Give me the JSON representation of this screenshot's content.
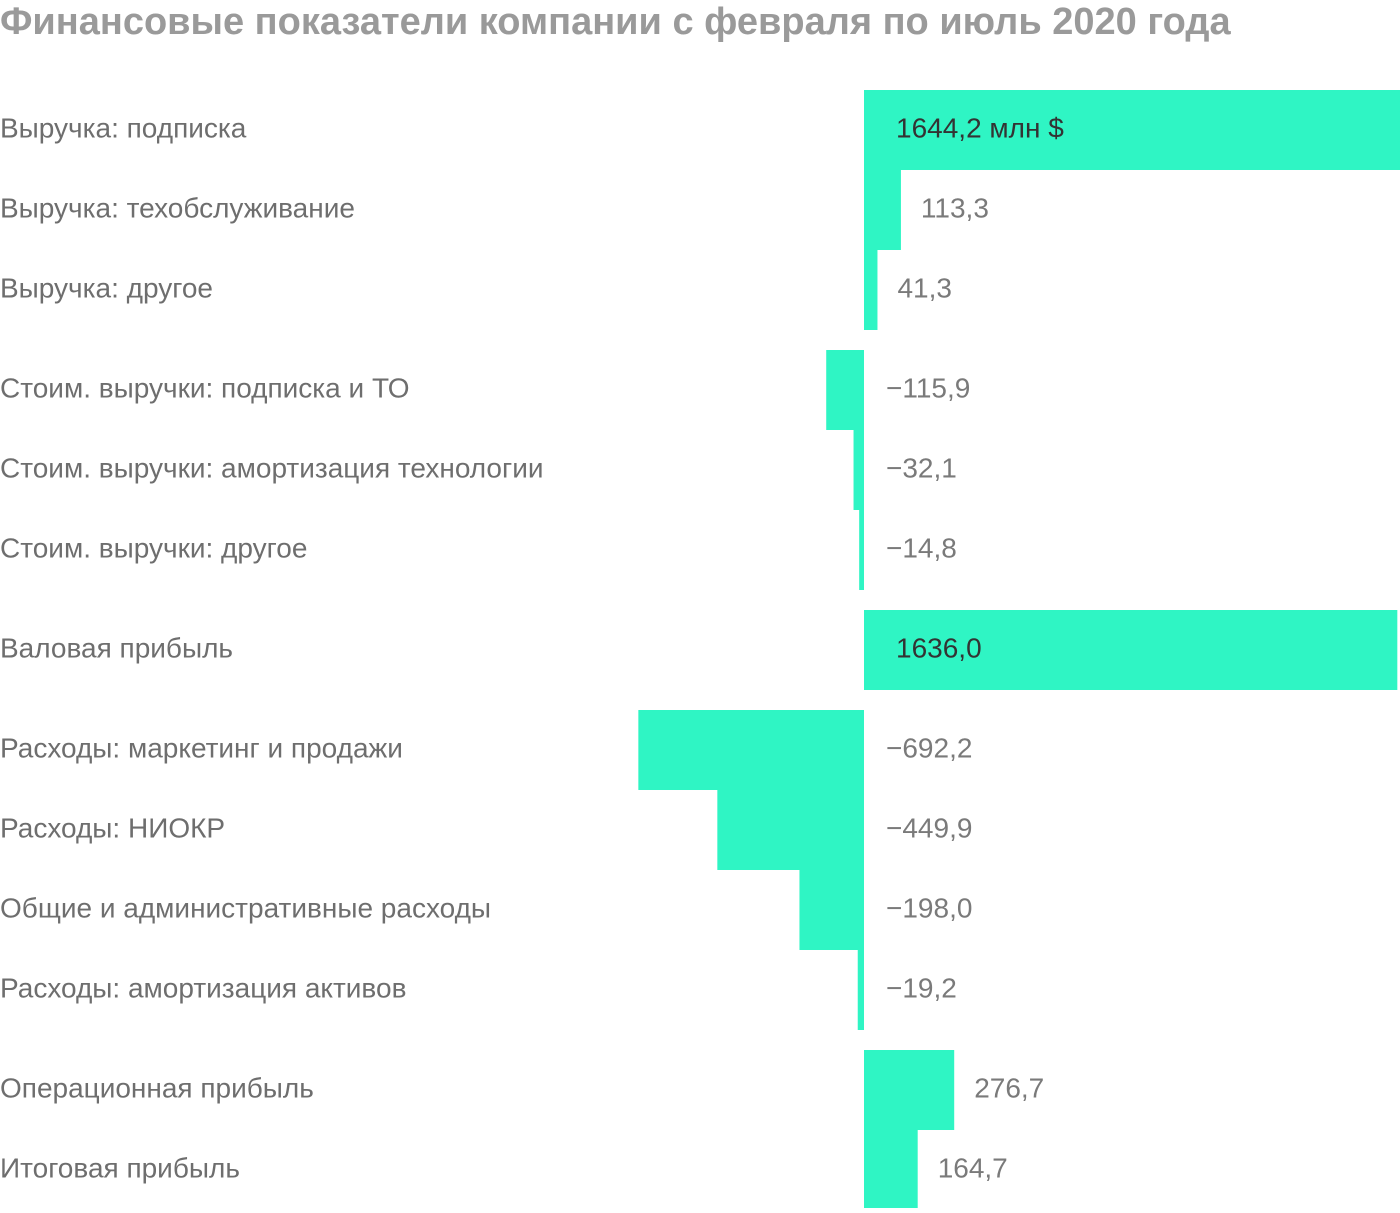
{
  "chart_data": {
    "type": "bar",
    "orientation": "horizontal",
    "title": "Финансовые показатели компании с февраля по июль 2020 года",
    "categories": [
      "Выручка: подписка",
      "Выручка: техобслуживание",
      "Выручка: другое",
      "Стоим. выручки: подписка и ТО",
      "Стоим. выручки: амортизация технологии",
      "Стоим. выручки: другое",
      "Валовая прибыль",
      "Расходы: маркетинг и продажи",
      "Расходы: НИОКР",
      "Общие и административные расходы",
      "Расходы: амортизация активов",
      "Операционная прибыль",
      "Итоговая прибыль"
    ],
    "values": [
      1644.2,
      113.3,
      41.3,
      -115.9,
      -32.1,
      -14.8,
      1636.0,
      -692.2,
      -449.9,
      -198.0,
      -19.2,
      276.7,
      164.7
    ],
    "value_labels": [
      "1644,2 млн $",
      "113,3",
      "41,3",
      "−115,9",
      "−32,1",
      "−14,8",
      "1636,0",
      "−692,2",
      "−449,9",
      "−198,0",
      "−19,2",
      "276,7",
      "164,7"
    ],
    "color": "#2ff5c4"
  }
}
